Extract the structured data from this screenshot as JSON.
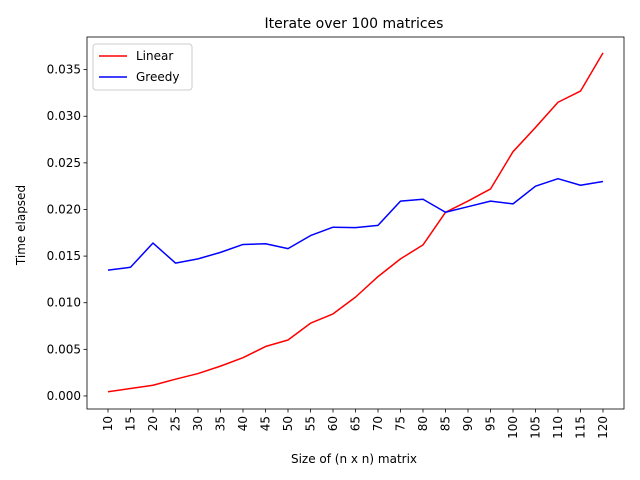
{
  "chart_data": {
    "type": "line",
    "title": "Iterate over 100 matrices",
    "xlabel": "Size of (n x n) matrix",
    "ylabel": "Time elapsed",
    "categories": [
      "10",
      "15",
      "20",
      "25",
      "30",
      "35",
      "40",
      "45",
      "50",
      "55",
      "60",
      "65",
      "70",
      "75",
      "80",
      "85",
      "90",
      "95",
      "100",
      "105",
      "110",
      "115",
      "120"
    ],
    "ylim": [
      -0.0014,
      0.0385
    ],
    "yticks": [
      0.0,
      0.005,
      0.01,
      0.015,
      0.02,
      0.025,
      0.03,
      0.035
    ],
    "ytick_labels": [
      "0.000",
      "0.005",
      "0.010",
      "0.015",
      "0.020",
      "0.025",
      "0.030",
      "0.035"
    ],
    "legend_position": "top-left",
    "grid": false,
    "series": [
      {
        "name": "Linear",
        "color": "#ff0000",
        "values": [
          0.00045,
          0.0008,
          0.00115,
          0.0018,
          0.0024,
          0.0032,
          0.0041,
          0.0053,
          0.006,
          0.0078,
          0.0088,
          0.0106,
          0.0128,
          0.0147,
          0.0162,
          0.0197,
          0.0209,
          0.0222,
          0.0262,
          0.0288,
          0.0315,
          0.0327,
          0.0368
        ]
      },
      {
        "name": "Greedy",
        "color": "#0000ff",
        "values": [
          0.0135,
          0.0138,
          0.0164,
          0.01425,
          0.0147,
          0.0154,
          0.01625,
          0.01632,
          0.0158,
          0.0172,
          0.0181,
          0.01805,
          0.0183,
          0.0209,
          0.0211,
          0.0197,
          0.0203,
          0.0209,
          0.0206,
          0.0225,
          0.0233,
          0.0226,
          0.023
        ]
      }
    ]
  }
}
